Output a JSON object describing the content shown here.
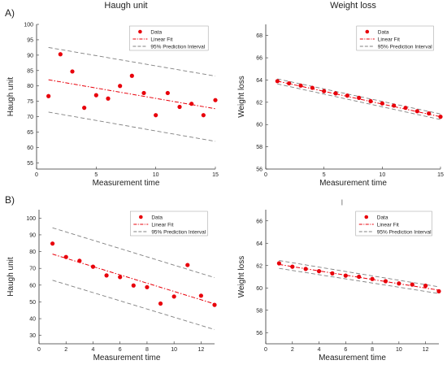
{
  "figure": {
    "panel_letters": [
      "A)",
      "B)"
    ],
    "stray_mark": "|"
  },
  "colors": {
    "data": "#e8000b",
    "fit": "#e8000b",
    "interval": "#808080",
    "axis": "#333333"
  },
  "chart_data": [
    {
      "type": "scatter",
      "title": "Haugh unit",
      "xlabel": "Measurement time",
      "ylabel": "Haugh unit",
      "xlim": [
        0,
        15
      ],
      "ylim": [
        53,
        100
      ],
      "xticks": [
        0,
        5,
        10,
        15
      ],
      "yticks": [
        55,
        60,
        65,
        70,
        75,
        80,
        85,
        90,
        95,
        100
      ],
      "legend_position": "top-right",
      "legend": [
        "Data",
        "Linear Fit",
        "95% Prediction Interval"
      ],
      "series": [
        {
          "name": "Data",
          "kind": "points",
          "x": [
            1,
            2,
            3,
            4,
            5,
            6,
            7,
            8,
            9,
            10,
            11,
            12,
            13,
            14,
            15
          ],
          "y": [
            76.7,
            90.3,
            84.7,
            72.9,
            77.0,
            75.9,
            80.0,
            83.3,
            77.7,
            70.5,
            77.7,
            73.2,
            74.2,
            70.5,
            75.4
          ]
        },
        {
          "name": "Linear Fit",
          "kind": "line",
          "x": [
            1,
            15
          ],
          "y": [
            82.0,
            72.6
          ]
        },
        {
          "name": "95% Prediction Interval",
          "kind": "band",
          "x": [
            1,
            15
          ],
          "upper": [
            92.5,
            83.2
          ],
          "lower": [
            71.5,
            62.0
          ]
        }
      ]
    },
    {
      "type": "scatter",
      "title": "Weight loss",
      "xlabel": "Measurement time",
      "ylabel": "Weight loss",
      "xlim": [
        0,
        15
      ],
      "ylim": [
        56,
        69
      ],
      "xticks": [
        0,
        5,
        10,
        15
      ],
      "yticks": [
        56,
        58,
        60,
        62,
        64,
        66,
        68
      ],
      "legend_position": "top-right",
      "legend": [
        "Data",
        "Linear Fit",
        "95% Prediction Interval"
      ],
      "series": [
        {
          "name": "Data",
          "kind": "points",
          "x": [
            1,
            2,
            3,
            4,
            5,
            6,
            7,
            8,
            9,
            10,
            11,
            12,
            13,
            14,
            15
          ],
          "y": [
            63.9,
            63.7,
            63.5,
            63.3,
            63.0,
            62.8,
            62.6,
            62.4,
            62.1,
            61.9,
            61.7,
            61.5,
            61.2,
            61.0,
            60.7
          ]
        },
        {
          "name": "Linear Fit",
          "kind": "line",
          "x": [
            1,
            15
          ],
          "y": [
            63.9,
            60.7
          ]
        },
        {
          "name": "95% Prediction Interval",
          "kind": "band",
          "x": [
            1,
            15
          ],
          "upper": [
            64.1,
            60.95
          ],
          "lower": [
            63.65,
            60.45
          ]
        }
      ]
    },
    {
      "type": "scatter",
      "title": "",
      "xlabel": "Measurement time",
      "ylabel": "Haugh unit",
      "xlim": [
        0,
        13
      ],
      "ylim": [
        25,
        105
      ],
      "xticks": [
        0,
        2,
        4,
        6,
        8,
        10,
        12
      ],
      "yticks": [
        30,
        40,
        50,
        60,
        70,
        80,
        90,
        100
      ],
      "legend_position": "top-right",
      "legend": [
        "Data",
        "Linear Fit",
        "95% Prediction Interval"
      ],
      "series": [
        {
          "name": "Data",
          "kind": "points",
          "x": [
            1,
            2,
            3,
            4,
            5,
            6,
            7,
            8,
            9,
            10,
            11,
            12,
            13
          ],
          "y": [
            84.8,
            76.8,
            74.5,
            71.0,
            65.8,
            64.8,
            59.8,
            58.8,
            49.0,
            53.2,
            72.0,
            53.7,
            48.2
          ]
        },
        {
          "name": "Linear Fit",
          "kind": "line",
          "x": [
            1,
            13
          ],
          "y": [
            78.5,
            48.8
          ]
        },
        {
          "name": "95% Prediction Interval",
          "kind": "band",
          "x": [
            1,
            13
          ],
          "upper": [
            94.2,
            64.5
          ],
          "lower": [
            62.9,
            33.5
          ]
        }
      ]
    },
    {
      "type": "scatter",
      "title": "",
      "xlabel": "Measurement time",
      "ylabel": "Weight loss",
      "xlim": [
        0,
        13
      ],
      "ylim": [
        55,
        67
      ],
      "xticks": [
        0,
        2,
        4,
        6,
        8,
        10,
        12
      ],
      "yticks": [
        56,
        58,
        60,
        62,
        64,
        66
      ],
      "legend_position": "top-right",
      "legend": [
        "Data",
        "Linear Fit",
        "95% Prediction Interval"
      ],
      "series": [
        {
          "name": "Data",
          "kind": "points",
          "x": [
            1,
            2,
            3,
            4,
            5,
            6,
            7,
            8,
            9,
            10,
            11,
            12,
            13
          ],
          "y": [
            62.2,
            61.9,
            61.7,
            61.5,
            61.3,
            61.1,
            61.0,
            60.8,
            60.6,
            60.4,
            60.3,
            60.2,
            59.7
          ]
        },
        {
          "name": "Linear Fit",
          "kind": "line",
          "x": [
            1,
            13
          ],
          "y": [
            62.1,
            59.8
          ]
        },
        {
          "name": "95% Prediction Interval",
          "kind": "band",
          "x": [
            1,
            13
          ],
          "upper": [
            62.45,
            60.1
          ],
          "lower": [
            61.75,
            59.5
          ]
        }
      ]
    }
  ]
}
